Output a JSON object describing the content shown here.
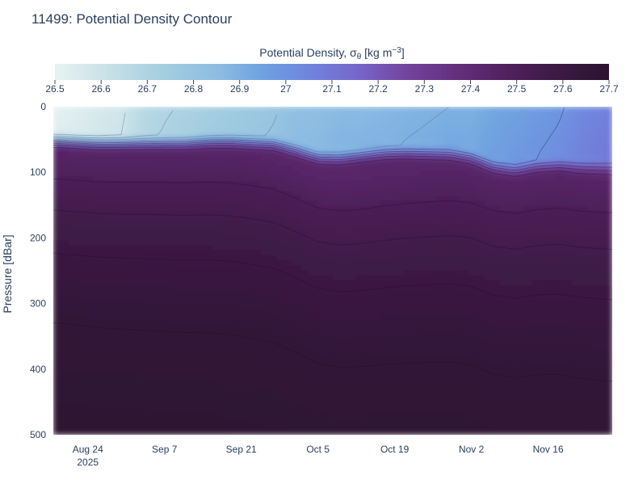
{
  "chart_data": {
    "type": "heatmap",
    "title": "11499: Potential Density Contour",
    "colorbar": {
      "title": "Potential Density, σ",
      "title_sub": "θ",
      "title_units": "[kg m",
      "title_exp": "−3",
      "title_close": "]",
      "range": [
        26.5,
        27.7
      ],
      "ticks": [
        "26.5",
        "26.6",
        "26.7",
        "26.8",
        "26.9",
        "27",
        "27.1",
        "27.2",
        "27.3",
        "27.4",
        "27.5",
        "27.6",
        "27.7"
      ],
      "colorscale": [
        [
          0.0,
          "#e8f2f3"
        ],
        [
          0.1,
          "#c6e0e7"
        ],
        [
          0.2,
          "#a3cde0"
        ],
        [
          0.3,
          "#8bbbe2"
        ],
        [
          0.37,
          "#6fa3e0"
        ],
        [
          0.42,
          "#6e92e0"
        ],
        [
          0.47,
          "#7180dc"
        ],
        [
          0.55,
          "#7765c9"
        ],
        [
          0.63,
          "#73459f"
        ],
        [
          0.72,
          "#65307f"
        ],
        [
          0.81,
          "#52215f"
        ],
        [
          0.9,
          "#3d1a45"
        ],
        [
          1.0,
          "#2b1330"
        ]
      ]
    },
    "xaxis": {
      "ticks": [
        {
          "label": "Aug 24",
          "sub": "2025",
          "day": 0
        },
        {
          "label": "Sep 7",
          "sub": "",
          "day": 14
        },
        {
          "label": "Sep 21",
          "sub": "",
          "day": 28
        },
        {
          "label": "Oct 5",
          "sub": "",
          "day": 42
        },
        {
          "label": "Oct 19",
          "sub": "",
          "day": 56
        },
        {
          "label": "Nov 2",
          "sub": "",
          "day": 70
        },
        {
          "label": "Nov 16",
          "sub": "",
          "day": 84
        }
      ],
      "range_days": [
        -6.3,
        95.7
      ]
    },
    "yaxis": {
      "label": "Pressure [dBar]",
      "ticks": [
        "0",
        "100",
        "200",
        "300",
        "400",
        "500"
      ],
      "range": [
        0,
        500
      ]
    },
    "profiles": {
      "days": [
        -6,
        -2,
        2,
        6,
        10,
        14,
        18,
        22,
        26,
        30,
        34,
        38,
        42,
        46,
        50,
        54,
        58,
        62,
        66,
        70,
        74,
        78,
        82,
        86,
        90,
        95
      ],
      "surface_sigma": [
        26.51,
        26.53,
        26.56,
        26.58,
        26.66,
        26.69,
        26.71,
        26.73,
        26.75,
        26.77,
        26.79,
        26.83,
        26.84,
        26.86,
        26.86,
        26.87,
        26.88,
        26.89,
        26.9,
        26.9,
        26.93,
        26.95,
        26.97,
        26.99,
        27.03,
        27.06
      ],
      "mixed_layer_depth": [
        36,
        38,
        40,
        40,
        40,
        40,
        40,
        38,
        38,
        40,
        42,
        52,
        63,
        64,
        60,
        56,
        55,
        56,
        57,
        63,
        77,
        82,
        76,
        74,
        78,
        80
      ]
    }
  }
}
